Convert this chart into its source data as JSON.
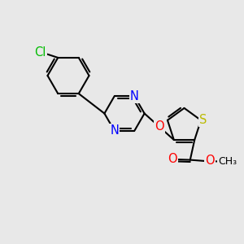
{
  "background_color": "#e8e8e8",
  "atom_colors": {
    "C": "#000000",
    "N": "#0000ff",
    "O": "#ff0000",
    "S": "#bbbb00",
    "Cl": "#00bb00"
  },
  "bond_color": "#000000",
  "bond_width": 1.5,
  "font_size_atoms": 10.5,
  "font_size_methyl": 9.5
}
